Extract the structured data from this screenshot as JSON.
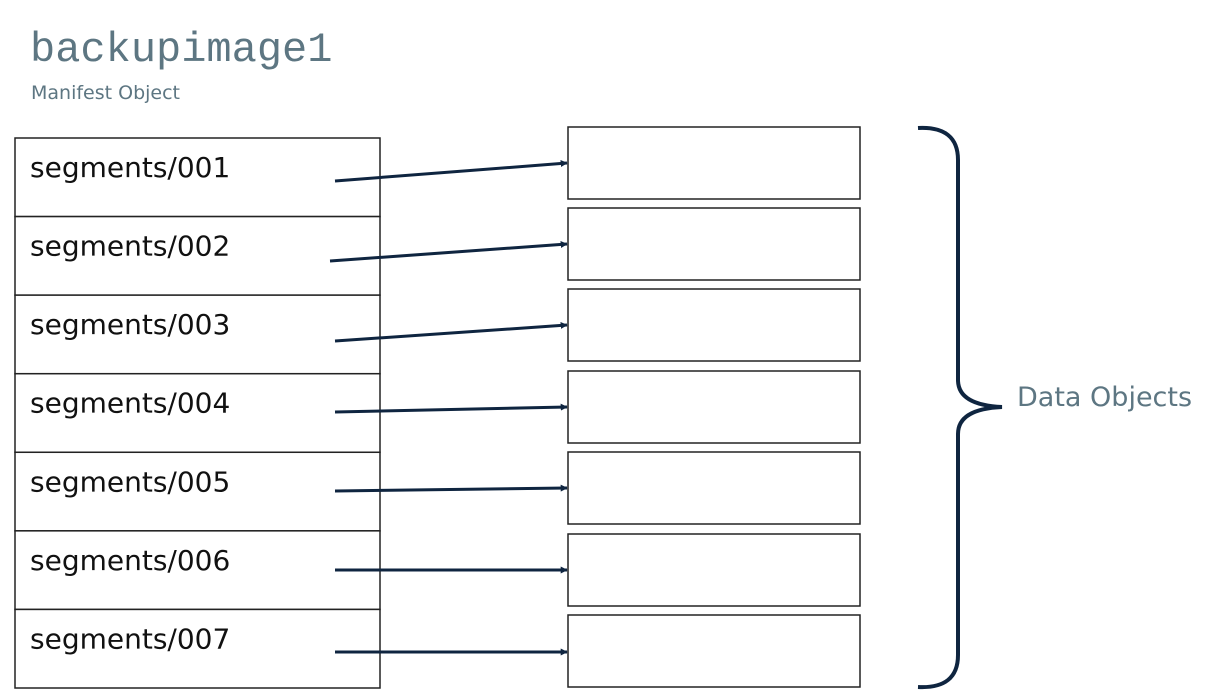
{
  "header": {
    "title": "backupimage1",
    "subtitle": "Manifest Object"
  },
  "segments": [
    "segments/001",
    "segments/002",
    "segments/003",
    "segments/004",
    "segments/005",
    "segments/006",
    "segments/007"
  ],
  "brace_label": "Data Objects"
}
